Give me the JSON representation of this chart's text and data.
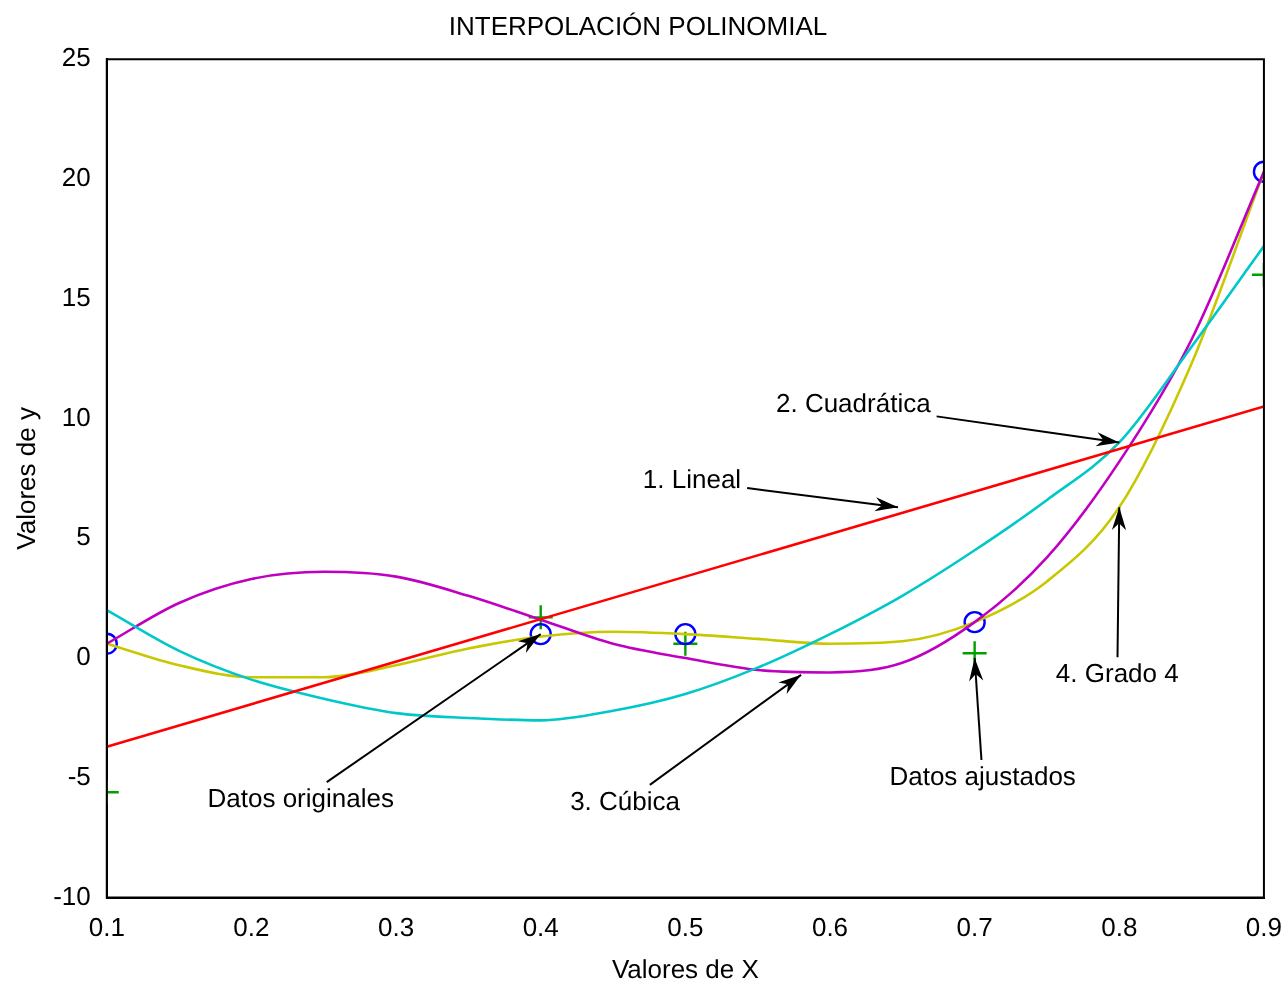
{
  "chart_data": {
    "type": "line",
    "title": "INTERPOLACIÓN POLINOMIAL",
    "xlabel": "Valores de X",
    "ylabel": "Valores de y",
    "xlim": [
      0.1,
      0.9
    ],
    "ylim": [
      -10,
      25
    ],
    "xticks": [
      0.1,
      0.2,
      0.3,
      0.4,
      0.5,
      0.6,
      0.7,
      0.8,
      0.9
    ],
    "yticks": [
      -10,
      -5,
      0,
      5,
      10,
      15,
      20,
      25
    ],
    "series": [
      {
        "type": "line",
        "color": "#ff0000",
        "x": [
          0.1,
          0.9
        ],
        "values": [
          -3.7,
          10.5
        ]
      },
      {
        "type": "line",
        "color": "#00c8c8",
        "x": [
          0.1,
          0.15,
          0.2,
          0.25,
          0.3,
          0.35,
          0.4,
          0.45,
          0.5,
          0.55,
          0.6,
          0.65,
          0.7,
          0.75,
          0.8,
          0.85,
          0.9
        ],
        "values": [
          2.0,
          0.3,
          -0.9,
          -1.7,
          -2.3,
          -2.5,
          -2.6,
          -2.2,
          -1.5,
          -0.4,
          1.0,
          2.6,
          4.5,
          6.6,
          9.0,
          13.0,
          17.2
        ]
      },
      {
        "type": "line",
        "color": "#c000c0",
        "x": [
          0.1,
          0.15,
          0.2,
          0.25,
          0.3,
          0.35,
          0.4,
          0.45,
          0.5,
          0.55,
          0.6,
          0.65,
          0.7,
          0.75,
          0.8,
          0.85,
          0.9
        ],
        "values": [
          0.6,
          2.3,
          3.3,
          3.6,
          3.4,
          2.6,
          1.6,
          0.6,
          0.0,
          -0.5,
          -0.6,
          -0.2,
          1.5,
          4.2,
          8.2,
          13.3,
          20.3
        ]
      },
      {
        "type": "line",
        "color": "#c8c800",
        "x": [
          0.1,
          0.15,
          0.2,
          0.25,
          0.3,
          0.35,
          0.4,
          0.45,
          0.5,
          0.55,
          0.6,
          0.65,
          0.7,
          0.75,
          0.8,
          0.85,
          0.9
        ],
        "values": [
          0.6,
          -0.3,
          -0.8,
          -0.8,
          -0.3,
          0.4,
          0.9,
          1.1,
          1.0,
          0.8,
          0.6,
          0.7,
          1.5,
          3.2,
          6.3,
          12.3,
          20.3
        ]
      },
      {
        "type": "scatter",
        "marker": "circle",
        "color": "#0000ff",
        "x": [
          0.1,
          0.4,
          0.5,
          0.7,
          0.9
        ],
        "values": [
          0.6,
          1.0,
          1.0,
          1.5,
          20.3
        ]
      },
      {
        "type": "scatter",
        "marker": "cross",
        "color": "#00a000",
        "x": [
          0.1,
          0.4,
          0.5,
          0.7,
          0.9
        ],
        "values": [
          -5.6,
          1.7,
          0.6,
          0.2,
          16.0
        ]
      }
    ],
    "annotations": [
      {
        "text": "1. Lineal",
        "x": 0.647,
        "y": 6.3
      },
      {
        "text": "2. Cuadrática",
        "x": 0.8,
        "y": 9.0
      },
      {
        "text": "Datos originales",
        "x": 0.4,
        "y": 1.0
      },
      {
        "text": "3. Cúbica",
        "x": 0.58,
        "y": -0.7
      },
      {
        "text": "Datos ajustados",
        "x": 0.7,
        "y": 0.0
      },
      {
        "text": "4. Grado 4",
        "x": 0.8,
        "y": 6.3
      }
    ]
  }
}
